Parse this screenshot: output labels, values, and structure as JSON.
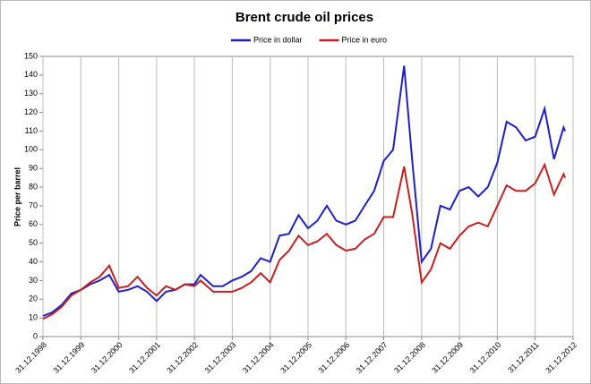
{
  "chart_data": {
    "type": "line",
    "title": "Brent crude oil prices",
    "ylabel": "Price per barrel",
    "x": [
      "31.12.1998",
      "31.03.1999",
      "30.06.1999",
      "30.09.1999",
      "31.12.1999",
      "31.03.2000",
      "30.06.2000",
      "30.09.2000",
      "31.12.2000",
      "31.03.2001",
      "30.06.2001",
      "30.09.2001",
      "31.12.2001",
      "31.03.2002",
      "30.06.2002",
      "30.09.2002",
      "31.12.2002",
      "28.02.2003",
      "30.06.2003",
      "30.09.2003",
      "31.12.2003",
      "31.03.2004",
      "30.06.2004",
      "30.09.2004",
      "31.12.2004",
      "31.03.2005",
      "30.06.2005",
      "30.09.2005",
      "31.12.2005",
      "31.03.2006",
      "30.06.2006",
      "30.09.2006",
      "31.12.2006",
      "31.03.2007",
      "30.06.2007",
      "30.09.2007",
      "31.12.2007",
      "31.03.2008",
      "15.07.2008",
      "30.09.2008",
      "31.12.2008",
      "31.03.2009",
      "30.06.2009",
      "30.09.2009",
      "31.12.2009",
      "31.03.2010",
      "30.06.2010",
      "30.09.2010",
      "31.12.2010",
      "31.03.2011",
      "30.06.2011",
      "30.09.2011",
      "31.12.2011",
      "31.03.2012",
      "30.06.2012",
      "30.09.2012",
      "15.10.2012"
    ],
    "series": [
      {
        "name": "Price in dollar",
        "color": "#1f1fc8",
        "values": [
          11,
          13,
          17,
          23,
          25,
          28,
          30,
          33,
          24,
          25,
          27,
          24,
          19,
          24,
          25,
          28,
          28,
          33,
          27,
          27,
          30,
          32,
          35,
          42,
          40,
          54,
          55,
          65,
          58,
          62,
          70,
          62,
          60,
          62,
          70,
          78,
          94,
          100,
          145,
          95,
          40,
          47,
          70,
          68,
          78,
          80,
          75,
          80,
          93,
          115,
          112,
          105,
          107,
          122,
          95,
          112,
          110
        ]
      },
      {
        "name": "Price in euro",
        "color": "#c81f1f",
        "values": [
          9.5,
          12,
          16,
          22,
          25,
          29,
          32,
          38,
          26,
          27,
          32,
          26,
          22,
          27,
          25,
          28,
          27,
          30,
          24,
          24,
          24,
          26,
          29,
          34,
          29,
          41,
          46,
          54,
          49,
          51,
          55,
          49,
          46,
          47,
          52,
          55,
          64,
          64,
          91,
          66,
          29,
          36,
          50,
          47,
          54,
          59,
          61,
          59,
          70,
          81,
          78,
          78,
          82,
          92,
          76,
          87,
          85
        ]
      }
    ],
    "xlim": [
      "31.12.1998",
      "31.12.2012"
    ],
    "xticks": [
      "31.12.1998",
      "31.12.1999",
      "31.12.2000",
      "31.12.2001",
      "31.12.2002",
      "31.12.2003",
      "31.12.2004",
      "31.12.2005",
      "31.12.2006",
      "31.12.2007",
      "31.12.2008",
      "31.12.2009",
      "31.12.2010",
      "31.12.2011",
      "31.12.2012"
    ],
    "ylim": [
      0,
      150
    ],
    "yticks": [
      0,
      10,
      20,
      30,
      40,
      50,
      60,
      70,
      80,
      90,
      100,
      110,
      120,
      130,
      140,
      150
    ],
    "grid": "x",
    "legend": "top"
  }
}
